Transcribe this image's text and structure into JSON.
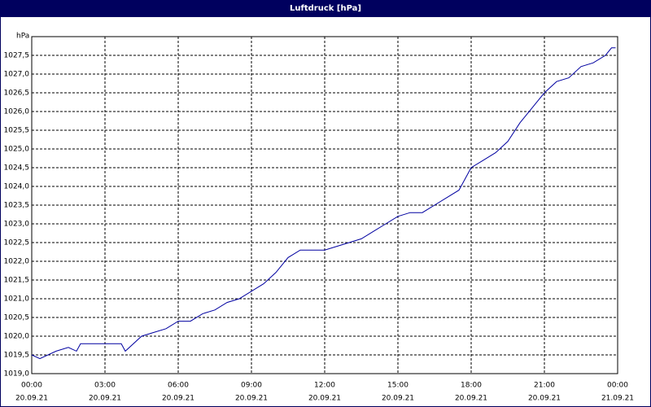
{
  "chart_data": {
    "type": "line",
    "title": "Luftdruck [hPa]",
    "y_unit": "hPa",
    "x": [
      "2021-09-20T00:00",
      "2021-09-20T00:20",
      "2021-09-20T01:00",
      "2021-09-20T01:30",
      "2021-09-20T01:50",
      "2021-09-20T02:00",
      "2021-09-20T03:00",
      "2021-09-20T03:40",
      "2021-09-20T03:50",
      "2021-09-20T04:30",
      "2021-09-20T05:00",
      "2021-09-20T05:30",
      "2021-09-20T06:00",
      "2021-09-20T06:30",
      "2021-09-20T07:00",
      "2021-09-20T07:30",
      "2021-09-20T08:00",
      "2021-09-20T08:30",
      "2021-09-20T09:00",
      "2021-09-20T09:30",
      "2021-09-20T10:00",
      "2021-09-20T10:30",
      "2021-09-20T11:00",
      "2021-09-20T11:30",
      "2021-09-20T12:00",
      "2021-09-20T12:30",
      "2021-09-20T13:00",
      "2021-09-20T13:30",
      "2021-09-20T14:00",
      "2021-09-20T14:30",
      "2021-09-20T15:00",
      "2021-09-20T15:30",
      "2021-09-20T16:00",
      "2021-09-20T16:30",
      "2021-09-20T17:00",
      "2021-09-20T17:30",
      "2021-09-20T18:00",
      "2021-09-20T18:30",
      "2021-09-20T19:00",
      "2021-09-20T19:30",
      "2021-09-20T20:00",
      "2021-09-20T20:30",
      "2021-09-20T21:00",
      "2021-09-20T21:30",
      "2021-09-20T22:00",
      "2021-09-20T22:30",
      "2021-09-20T23:00",
      "2021-09-20T23:30",
      "2021-09-20T23:45",
      "2021-09-20T23:55"
    ],
    "series": [
      {
        "name": "Luftdruck",
        "color": "#0000a0",
        "values": [
          1019.5,
          1019.4,
          1019.6,
          1019.7,
          1019.6,
          1019.8,
          1019.8,
          1019.8,
          1019.6,
          1020.0,
          1020.1,
          1020.2,
          1020.4,
          1020.4,
          1020.6,
          1020.7,
          1020.9,
          1021.0,
          1021.2,
          1021.4,
          1021.7,
          1022.1,
          1022.3,
          1022.3,
          1022.3,
          1022.4,
          1022.5,
          1022.6,
          1022.8,
          1023.0,
          1023.2,
          1023.3,
          1023.3,
          1023.5,
          1023.7,
          1023.9,
          1024.5,
          1024.7,
          1024.9,
          1025.2,
          1025.7,
          1026.1,
          1026.5,
          1026.8,
          1026.9,
          1027.2,
          1027.3,
          1027.5,
          1027.7,
          1027.7
        ]
      }
    ],
    "xlim": [
      "2021-09-20T00:00",
      "2021-09-21T00:00"
    ],
    "xticks": [
      {
        "value": "2021-09-20T00:00",
        "label": "00:00",
        "date": "20.09.21"
      },
      {
        "value": "2021-09-20T03:00",
        "label": "03:00",
        "date": "20.09.21"
      },
      {
        "value": "2021-09-20T06:00",
        "label": "06:00",
        "date": "20.09.21"
      },
      {
        "value": "2021-09-20T09:00",
        "label": "09:00",
        "date": "20.09.21"
      },
      {
        "value": "2021-09-20T12:00",
        "label": "12:00",
        "date": "20.09.21"
      },
      {
        "value": "2021-09-20T15:00",
        "label": "15:00",
        "date": "20.09.21"
      },
      {
        "value": "2021-09-20T18:00",
        "label": "18:00",
        "date": "20.09.21"
      },
      {
        "value": "2021-09-20T21:00",
        "label": "21:00",
        "date": "20.09.21"
      },
      {
        "value": "2021-09-21T00:00",
        "label": "00:00",
        "date": "21.09.21"
      }
    ],
    "ylim": [
      1019,
      1028
    ],
    "yticks": [
      {
        "value": 1019,
        "label": "1019,0"
      },
      {
        "value": 1019.5,
        "label": "1019,5"
      },
      {
        "value": 1020,
        "label": "1020,0"
      },
      {
        "value": 1020.5,
        "label": "1020,5"
      },
      {
        "value": 1021,
        "label": "1021,0"
      },
      {
        "value": 1021.5,
        "label": "1021,5"
      },
      {
        "value": 1022,
        "label": "1022,0"
      },
      {
        "value": 1022.5,
        "label": "1022,5"
      },
      {
        "value": 1023,
        "label": "1023,0"
      },
      {
        "value": 1023.5,
        "label": "1023,5"
      },
      {
        "value": 1024,
        "label": "1024,0"
      },
      {
        "value": 1024.5,
        "label": "1024,5"
      },
      {
        "value": 1025,
        "label": "1025,0"
      },
      {
        "value": 1025.5,
        "label": "1025,5"
      },
      {
        "value": 1026,
        "label": "1026,0"
      },
      {
        "value": 1026.5,
        "label": "1026,5"
      },
      {
        "value": 1027,
        "label": "1027,0"
      },
      {
        "value": 1027.5,
        "label": "1027,5"
      }
    ],
    "grid": true
  }
}
